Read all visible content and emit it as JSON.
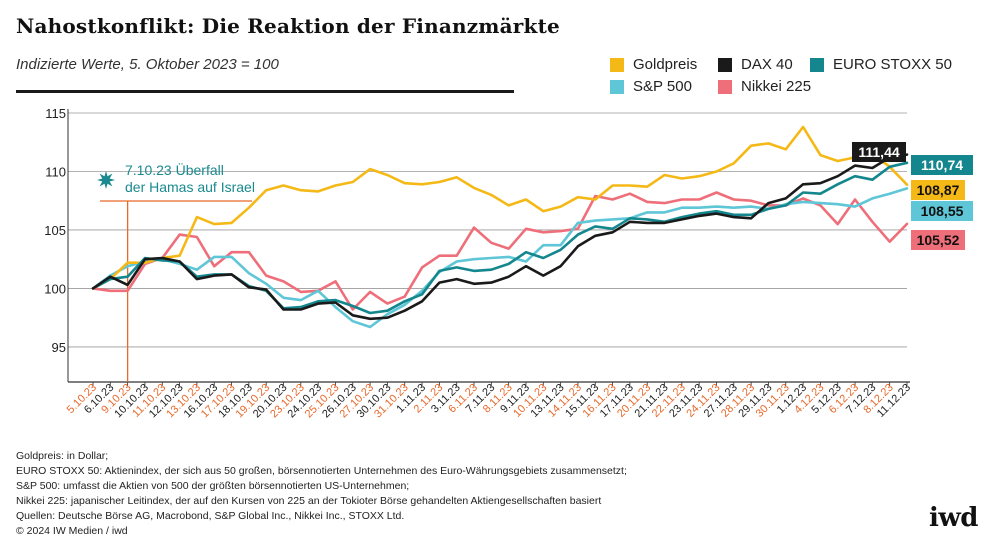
{
  "header": {
    "title": "Nahostkonflikt: Die Reaktion der Finanzmärkte",
    "subtitle": "Indizierte Werte, 5. Oktober 2023 = 100"
  },
  "legend": [
    {
      "label": "Goldpreis",
      "color": "#f5b917"
    },
    {
      "label": "DAX 40",
      "color": "#1a1a1a"
    },
    {
      "label": "EURO STOXX 50",
      "color": "#14878e"
    },
    {
      "label": "S&P 500",
      "color": "#5ec6d6"
    },
    {
      "label": "Nikkei 225",
      "color": "#ee6e79"
    }
  ],
  "chart_data": {
    "type": "line",
    "title": "Nahostkonflikt: Die Reaktion der Finanzmärkte",
    "subtitle": "Indizierte Werte, 5. Oktober 2023 = 100",
    "ylim": [
      92,
      115
    ],
    "yticks": [
      95,
      100,
      105,
      110,
      115
    ],
    "grid": true,
    "legend_position": "top-right",
    "categories": [
      "5.10.23",
      "6.10.23",
      "9.10.23",
      "10.10.23",
      "11.10.23",
      "12.10.23",
      "13.10.23",
      "16.10.23",
      "17.10.23",
      "18.10.23",
      "19.10.23",
      "20.10.23",
      "23.10.23",
      "24.10.23",
      "25.10.23",
      "26.10.23",
      "27.10.23",
      "30.10.23",
      "31.10.23",
      "1.11.23",
      "2.11.23",
      "3.11.23",
      "6.11.23",
      "7.11.23",
      "8.11.23",
      "9.11.23",
      "10.11.23",
      "13.11.23",
      "14.11.23",
      "15.11.23",
      "16.11.23",
      "17.11.23",
      "20.11.23",
      "21.11.23",
      "22.11.23",
      "23.11.23",
      "24.11.23",
      "27.11.23",
      "28.11.23",
      "29.11.23",
      "30.11.23",
      "1.12.23",
      "4.12.23",
      "5.12.23",
      "6.12.23",
      "7.12.23",
      "8.12.23",
      "11.12.23"
    ],
    "highlighted_categories": [
      "5.10.23",
      "9.10.23",
      "11.10.23",
      "13.10.23",
      "17.10.23",
      "19.10.23",
      "23.10.23",
      "25.10.23",
      "27.10.23",
      "31.10.23",
      "2.11.23",
      "6.11.23",
      "8.11.23",
      "10.11.23",
      "14.11.23",
      "16.11.23",
      "20.11.23",
      "22.11.23",
      "24.11.23",
      "28.11.23",
      "30.11.23",
      "4.12.23",
      "6.12.23",
      "8.12.23"
    ],
    "series": [
      {
        "name": "Goldpreis",
        "color": "#f5b917",
        "end_label": "108,87",
        "values": [
          100,
          100.8,
          102.2,
          102.2,
          102.6,
          102.8,
          106.1,
          105.5,
          105.6,
          106.9,
          108.4,
          108.8,
          108.4,
          108.3,
          108.8,
          109.1,
          110.2,
          109.7,
          109.0,
          108.9,
          109.1,
          109.5,
          108.6,
          108.0,
          107.1,
          107.6,
          106.6,
          107.0,
          107.8,
          107.6,
          108.8,
          108.8,
          108.7,
          109.7,
          109.4,
          109.6,
          110.0,
          110.7,
          112.2,
          112.4,
          111.9,
          113.8,
          111.4,
          110.9,
          111.2,
          111.5,
          110.4,
          108.87
        ]
      },
      {
        "name": "DAX 40",
        "color": "#1a1a1a",
        "end_label": "111,44",
        "values": [
          100,
          101.0,
          100.3,
          102.5,
          102.6,
          102.3,
          100.8,
          101.1,
          101.2,
          100.1,
          99.9,
          98.2,
          98.2,
          98.7,
          98.8,
          97.7,
          97.4,
          97.5,
          98.1,
          98.9,
          100.5,
          100.8,
          100.4,
          100.5,
          101.0,
          101.9,
          101.1,
          101.9,
          103.6,
          104.5,
          104.8,
          105.7,
          105.6,
          105.6,
          105.9,
          106.2,
          106.4,
          106.1,
          106.0,
          107.3,
          107.7,
          108.9,
          109.0,
          109.6,
          110.5,
          110.3,
          111.2,
          111.44
        ]
      },
      {
        "name": "EURO STOXX 50",
        "color": "#14878e",
        "end_label": "110,74",
        "values": [
          100,
          100.8,
          101.0,
          102.6,
          102.4,
          102.3,
          101.0,
          101.2,
          101.2,
          100.2,
          99.8,
          98.3,
          98.4,
          98.9,
          99.0,
          98.5,
          97.9,
          98.1,
          98.9,
          99.5,
          101.5,
          101.8,
          101.5,
          101.6,
          102.1,
          103.1,
          102.6,
          103.3,
          104.6,
          105.3,
          105.1,
          106.0,
          105.9,
          105.7,
          106.1,
          106.4,
          106.6,
          106.3,
          106.3,
          106.8,
          107.1,
          108.2,
          108.1,
          108.9,
          109.6,
          109.3,
          110.4,
          110.74
        ]
      },
      {
        "name": "S&P 500",
        "color": "#5ec6d6",
        "end_label": "108,55",
        "values": [
          100,
          101.1,
          101.9,
          102.3,
          102.5,
          102.1,
          101.6,
          102.7,
          102.7,
          101.3,
          100.4,
          99.2,
          99.0,
          99.8,
          98.4,
          97.2,
          96.7,
          97.8,
          98.6,
          99.8,
          101.4,
          102.3,
          102.5,
          102.6,
          102.7,
          102.3,
          103.7,
          103.7,
          105.6,
          105.8,
          105.9,
          106.0,
          106.5,
          106.5,
          106.9,
          106.9,
          107.0,
          106.9,
          107.0,
          106.8,
          107.2,
          107.4,
          107.3,
          107.2,
          107.0,
          107.7,
          108.1,
          108.55
        ]
      },
      {
        "name": "Nikkei 225",
        "color": "#ee6e79",
        "end_label": "105,52",
        "values": [
          100,
          99.8,
          99.8,
          102.1,
          102.6,
          104.6,
          104.4,
          101.9,
          103.1,
          103.1,
          101.1,
          100.6,
          99.7,
          99.8,
          100.6,
          98.2,
          99.7,
          98.7,
          99.3,
          101.8,
          102.8,
          102.8,
          105.2,
          103.9,
          103.4,
          105.1,
          104.8,
          104.9,
          105.1,
          107.9,
          107.6,
          108.1,
          107.4,
          107.3,
          107.6,
          107.6,
          108.2,
          107.6,
          107.5,
          107.1,
          107.1,
          107.7,
          107.1,
          105.5,
          107.6,
          105.7,
          104.0,
          105.52
        ]
      }
    ],
    "annotation": {
      "category": "9.10.23",
      "lines": [
        "7.10.23 Überfall",
        "der Hamas auf Israel"
      ]
    }
  },
  "notes": [
    "Goldpreis: in Dollar;",
    "EURO STOXX 50: Aktienindex, der sich aus 50 großen, börsennotierten Unternehmen des Euro-Währungsgebiets zusammensetzt;",
    "S&P 500: umfasst die Aktien von 500 der größten börsennotierten US-Unternehmen;",
    "Nikkei 225: japanischer Leitindex, der auf den Kursen von 225 an der Tokioter Börse gehandelten Aktiengesellschaften basiert",
    "Quellen: Deutsche Börse AG, Macrobond, S&P Global Inc., Nikkei Inc., STOXX Ltd.",
    "© 2024 IW Medien / iwd"
  ],
  "logo": "iwd"
}
